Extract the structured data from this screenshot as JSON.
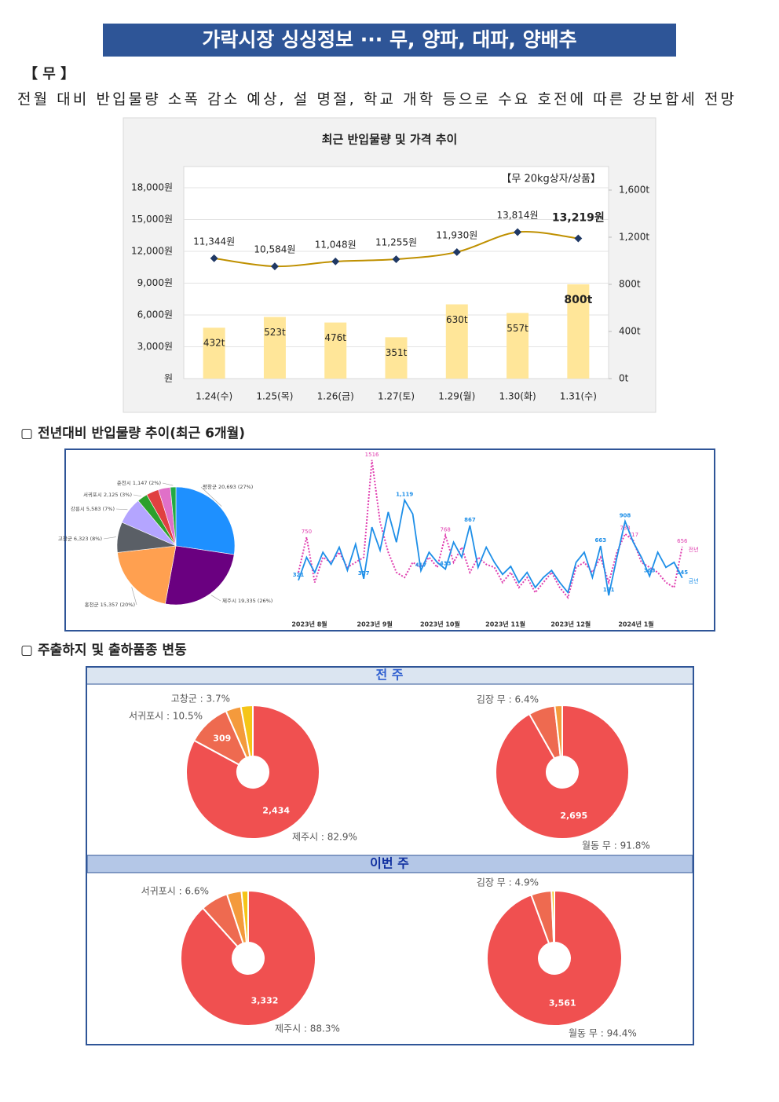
{
  "header": {
    "title": "가락시장 싱싱정보 ··· 무, 양파, 대파, 양배추"
  },
  "item": {
    "name": "【 무 】",
    "summary": "전월 대비 반입물량 소폭 감소 예상, 설 명절, 학교 개학 등으로 수요 호전에 따른 강보합세 전망"
  },
  "sections": [
    "▢ 전년대비 반입물량 추이(최근 6개월)",
    "▢ 주출하지 및 출하품종 변동"
  ],
  "table": {
    "headers": [
      "전 주",
      "이번 주"
    ]
  },
  "chart_data": [
    {
      "type": "combo",
      "title": "최근 반입물량 및 가격 추이",
      "annotation": "【무 20kg상자/상품】",
      "categories": [
        "1.24(수)",
        "1.25(목)",
        "1.26(금)",
        "1.27(토)",
        "1.29(월)",
        "1.30(화)",
        "1.31(수)"
      ],
      "ylim": [
        0,
        20000
      ],
      "yticks": [
        {
          "value": 0,
          "label": "원"
        },
        {
          "value": 3000,
          "label": "3,000원"
        },
        {
          "value": 6000,
          "label": "6,000원"
        },
        {
          "value": 9000,
          "label": "9,000원"
        },
        {
          "value": 12000,
          "label": "12,000원"
        },
        {
          "value": 15000,
          "label": "15,000원"
        },
        {
          "value": 18000,
          "label": "18,000원"
        }
      ],
      "y2lim": [
        0,
        1800
      ],
      "y2ticks": [
        {
          "value": 0,
          "label": "0t"
        },
        {
          "value": 400,
          "label": "400t"
        },
        {
          "value": 800,
          "label": "800t"
        },
        {
          "value": 1200,
          "label": "1,200t"
        },
        {
          "value": 1600,
          "label": "1,600t"
        }
      ],
      "grid": true,
      "series": [
        {
          "type": "bar",
          "axis": "y2",
          "color": "#ffe699",
          "values": [
            432,
            523,
            476,
            351,
            630,
            557,
            800
          ],
          "value_labels": [
            "432t",
            "523t",
            "476t",
            "351t",
            "630t",
            "557t",
            "800t"
          ]
        },
        {
          "type": "line",
          "color": "#bf9000",
          "marker_color": "#1f3864",
          "values": [
            11344,
            10584,
            11048,
            11255,
            11930,
            13814,
            13219
          ],
          "value_labels": [
            "11,344원",
            "10,584원",
            "11,048원",
            "11,255원",
            "11,930원",
            "13,814원",
            "13,219원"
          ]
        }
      ]
    },
    {
      "type": "pie",
      "categories": [
        "평창군 20,693 (27%)",
        "제주시 19,335 (26%)",
        "홍천군 15,357 (20%)",
        "고창군 6,323 (8%)",
        "강릉시 5,583 (7%)",
        "서귀포시 2,125 (3%)",
        null,
        null,
        "춘천시 1,147 (2%)"
      ],
      "values": [
        20693,
        19335,
        15357,
        6323,
        5583,
        2125,
        2600,
        2500,
        1147
      ],
      "colors": [
        "#1e90ff",
        "#6a0080",
        "#ffa050",
        "#5a5f66",
        "#b4a5ff",
        "#2ca02c",
        "#e04040",
        "#e070c8",
        "#22aa44"
      ]
    },
    {
      "type": "line",
      "categories": [
        "2023년 8월",
        null,
        null,
        null,
        null,
        null,
        null,
        null,
        "2023년 9월",
        null,
        null,
        null,
        null,
        null,
        null,
        null,
        "2023년 10월",
        null,
        null,
        null,
        null,
        null,
        null,
        null,
        "2023년 11월",
        null,
        null,
        null,
        null,
        null,
        null,
        null,
        "2023년 12월",
        null,
        null,
        null,
        null,
        null,
        null,
        null,
        "2024년 1월",
        null,
        null,
        null,
        null,
        null,
        null,
        null
      ],
      "ylim": [
        0,
        1600
      ],
      "series": [
        {
          "name": "전년",
          "color": "#e040b0",
          "values": [
            400,
            750,
            300,
            550,
            500,
            600,
            450,
            500,
            550,
            1516,
            900,
            600,
            400,
            350,
            500,
            450,
            550,
            450,
            768,
            500,
            650,
            400,
            550,
            480,
            450,
            300,
            400,
            250,
            350,
            200,
            300,
            400,
            250,
            150,
            450,
            500,
            400,
            550,
            300,
            600,
            783,
            717,
            500,
            450,
            400,
            300,
            250,
            656
          ],
          "value_labels": [
            null,
            "750",
            null,
            null,
            null,
            null,
            null,
            null,
            null,
            "1516",
            null,
            null,
            null,
            null,
            null,
            null,
            null,
            null,
            "768",
            null,
            null,
            null,
            null,
            null,
            null,
            null,
            null,
            null,
            null,
            null,
            null,
            null,
            null,
            null,
            null,
            null,
            null,
            null,
            null,
            null,
            "783",
            "717",
            null,
            null,
            null,
            null,
            null,
            "656"
          ]
        },
        {
          "name": "금년",
          "color": "#1e8fe8",
          "values": [
            321,
            550,
            400,
            600,
            480,
            650,
            420,
            680,
            337,
            850,
            620,
            1000,
            700,
            1119,
            980,
            417,
            600,
            500,
            433,
            700,
            550,
            867,
            450,
            650,
            500,
            380,
            460,
            300,
            400,
            250,
            350,
            420,
            300,
            200,
            500,
            600,
            350,
            663,
            171,
            550,
            908,
            700,
            550,
            363,
            600,
            450,
            500,
            345
          ],
          "value_labels": [
            "321",
            null,
            null,
            null,
            null,
            null,
            null,
            null,
            "337",
            null,
            null,
            null,
            null,
            "1,119",
            null,
            "417",
            null,
            null,
            "433",
            null,
            null,
            "867",
            null,
            null,
            null,
            null,
            null,
            null,
            null,
            null,
            null,
            null,
            null,
            null,
            null,
            null,
            null,
            "663",
            "171",
            null,
            "908",
            null,
            null,
            "363",
            null,
            null,
            null,
            "345"
          ]
        }
      ]
    },
    {
      "type": "donut",
      "categories": [
        "제주시 : 82.9%",
        "서귀포시 : 10.5%",
        "고창군 : 3.7%",
        null
      ],
      "values": [
        2434,
        309,
        109,
        85
      ],
      "value_labels": [
        "2,434",
        "309",
        null,
        null
      ],
      "colors": [
        "#f05050",
        "#ee6a50",
        "#f49a3c",
        "#f5c518"
      ]
    },
    {
      "type": "donut",
      "categories": [
        "월동 무 : 91.8%",
        "김장 무 : 6.4%",
        null
      ],
      "values": [
        2695,
        188,
        53
      ],
      "value_labels": [
        "2,695",
        null,
        null
      ],
      "colors": [
        "#f05050",
        "#ee6a50",
        "#f49a3c"
      ]
    },
    {
      "type": "donut",
      "categories": [
        "제주시 : 88.3%",
        "서귀포시 : 6.6%",
        null,
        null
      ],
      "values": [
        3332,
        249,
        132,
        60
      ],
      "value_labels": [
        "3,332",
        null,
        null,
        null
      ],
      "colors": [
        "#f05050",
        "#ee6a50",
        "#f49a3c",
        "#f5c518"
      ]
    },
    {
      "type": "donut",
      "categories": [
        "월동 무 : 94.4%",
        "김장 무 : 4.9%",
        null
      ],
      "values": [
        3561,
        185,
        26
      ],
      "value_labels": [
        "3,561",
        null,
        null
      ],
      "colors": [
        "#f05050",
        "#ee6a50",
        "#f5c518"
      ]
    }
  ]
}
